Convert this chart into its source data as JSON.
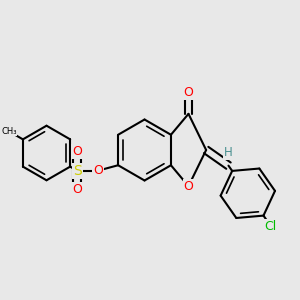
{
  "bg_color": "#e8e8e8",
  "bond_color": "#000000",
  "bond_width": 1.5,
  "atom_colors": {
    "O": "#ff0000",
    "S": "#cccc00",
    "Cl": "#00bb00",
    "H": "#4a9090",
    "C": "#000000"
  },
  "font_size_atom": 8.5,
  "fig_width": 3.0,
  "fig_height": 3.0,
  "dpi": 100
}
